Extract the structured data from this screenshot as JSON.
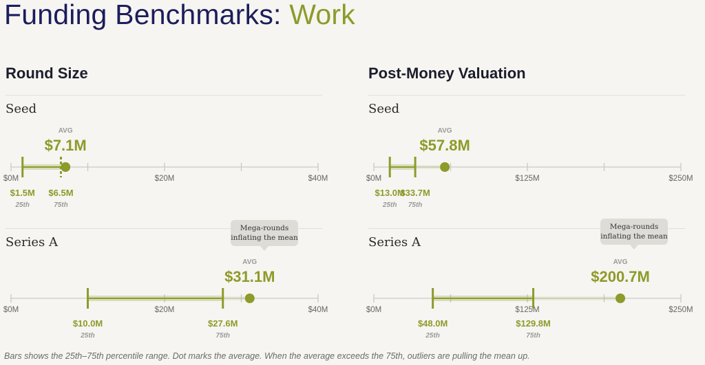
{
  "title": {
    "main": "Funding Benchmarks:",
    "accent": "Work"
  },
  "colors": {
    "accent": "#8e9a2a",
    "title": "#1c1d5c",
    "axis": "#c9c9c9"
  },
  "footnote": "Bars shows the 25th–75th percentile range. Dot marks the average. When the average exceeds the 75th, outliers are pulling the mean up.",
  "panels": [
    {
      "heading": "Round Size",
      "stages": [
        {
          "label": "Seed",
          "avg_label": "AVG",
          "avg_text": "$7.1M",
          "p25_text": "$1.5M",
          "p75_text": "$6.5M",
          "p25_sub": "25th",
          "p75_sub": "75th",
          "callout": ""
        },
        {
          "label": "Series A",
          "avg_label": "AVG",
          "avg_text": "$31.1M",
          "p25_text": "$10.0M",
          "p75_text": "$27.6M",
          "p25_sub": "25th",
          "p75_sub": "75th",
          "callout": "Mega-rounds inflating the mean"
        }
      ]
    },
    {
      "heading": "Post-Money Valuation",
      "stages": [
        {
          "label": "Seed",
          "avg_label": "AVG",
          "avg_text": "$57.8M",
          "p25_text": "$13.0M",
          "p75_text": "$33.7M",
          "p25_sub": "25th",
          "p75_sub": "75th",
          "callout": ""
        },
        {
          "label": "Series A",
          "avg_label": "AVG",
          "avg_text": "$200.7M",
          "p25_text": "$48.0M",
          "p75_text": "$129.8M",
          "p25_sub": "25th",
          "p75_sub": "75th",
          "callout": "Mega-rounds inflating the mean"
        }
      ]
    }
  ],
  "chart_data": [
    {
      "type": "range",
      "title": "Round Size",
      "xlim": [
        0,
        40
      ],
      "axis_tick_labels": [
        "$0M",
        "$20M",
        "$40M"
      ],
      "axis_tick_values": [
        0,
        20,
        40
      ],
      "minor_ticks": [
        10,
        30
      ],
      "series": [
        {
          "name": "Seed",
          "p25": 1.5,
          "p75": 6.5,
          "avg": 7.1
        },
        {
          "name": "Series A",
          "p25": 10.0,
          "p75": 27.6,
          "avg": 31.1
        }
      ]
    },
    {
      "type": "range",
      "title": "Post-Money Valuation",
      "xlim": [
        0,
        250
      ],
      "axis_tick_labels": [
        "$0M",
        "$125M",
        "$250M"
      ],
      "axis_tick_values": [
        0,
        125,
        250
      ],
      "minor_ticks": [
        62.5,
        187.5
      ],
      "series": [
        {
          "name": "Seed",
          "p25": 13.0,
          "p75": 33.7,
          "avg": 57.8
        },
        {
          "name": "Series A",
          "p25": 48.0,
          "p75": 129.8,
          "avg": 200.7
        }
      ]
    }
  ]
}
